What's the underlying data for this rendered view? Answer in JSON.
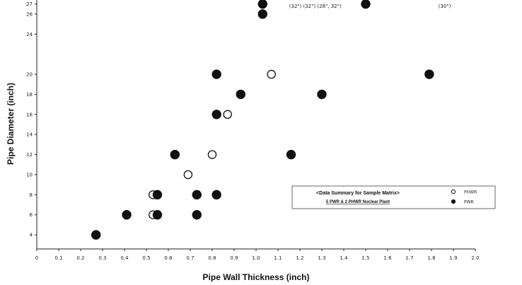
{
  "chart_data": {
    "type": "scatter",
    "title": "",
    "xlabel": "Pipe Wall Thickness (inch)",
    "ylabel": "Pipe Diameter (inch)",
    "xlim": [
      0,
      2.0
    ],
    "ylim": [
      2.6,
      27.4
    ],
    "x_ticks": [
      {
        "value": 0,
        "label": "0"
      },
      {
        "value": 0.1,
        "label": "0.1"
      },
      {
        "value": 0.2,
        "label": "0.2"
      },
      {
        "value": 0.3,
        "label": "0.3"
      },
      {
        "value": 0.4,
        "label": "0.4"
      },
      {
        "value": 0.5,
        "label": "0.5"
      },
      {
        "value": 0.6,
        "label": "0.6"
      },
      {
        "value": 0.7,
        "label": "0.7"
      },
      {
        "value": 0.8,
        "label": "0.8"
      },
      {
        "value": 0.9,
        "label": "0.9"
      },
      {
        "value": 1.0,
        "label": "1.0"
      },
      {
        "value": 1.1,
        "label": "1.1"
      },
      {
        "value": 1.2,
        "label": "1.2"
      },
      {
        "value": 1.3,
        "label": "1.3"
      },
      {
        "value": 1.4,
        "label": "1.4"
      },
      {
        "value": 1.5,
        "label": "1.5"
      },
      {
        "value": 1.6,
        "label": "1.6"
      },
      {
        "value": 1.7,
        "label": "1.7"
      },
      {
        "value": 1.8,
        "label": "1.8"
      },
      {
        "value": 1.9,
        "label": "1.9"
      },
      {
        "value": 2.0,
        "label": "2.0"
      }
    ],
    "y_ticks": [
      {
        "value": 4,
        "label": "4"
      },
      {
        "value": 6,
        "label": "6"
      },
      {
        "value": 8,
        "label": "8"
      },
      {
        "value": 10,
        "label": "10"
      },
      {
        "value": 12,
        "label": "12"
      },
      {
        "value": 14,
        "label": "14"
      },
      {
        "value": 16,
        "label": "16"
      },
      {
        "value": 18,
        "label": "18"
      },
      {
        "value": 20,
        "label": "20"
      },
      {
        "value": 24,
        "label": "24"
      },
      {
        "value": 26,
        "label": "26"
      },
      {
        "value": 27,
        "label": "27"
      }
    ],
    "grid": false,
    "legend_position": "lower-right",
    "legend": {
      "title": "<Data Summary for Sample Matrix>",
      "subtitle": "5 PWR & 2 PHWR Nuclear Plant",
      "entries": [
        {
          "name": "PHWR",
          "marker": "open-circle"
        },
        {
          "name": "PWR",
          "marker": "filled-circle"
        }
      ]
    },
    "top_annotations": [
      {
        "x": 1.27,
        "text": "(32\") (32\") (28\", 32\")"
      },
      {
        "x": 1.86,
        "text": "(30\")"
      }
    ],
    "series": [
      {
        "name": "PHWR",
        "marker": "open-circle",
        "points": [
          {
            "x": 0.53,
            "y": 8
          },
          {
            "x": 0.53,
            "y": 6
          },
          {
            "x": 0.69,
            "y": 10
          },
          {
            "x": 0.8,
            "y": 12
          },
          {
            "x": 0.87,
            "y": 16
          },
          {
            "x": 1.07,
            "y": 20
          }
        ]
      },
      {
        "name": "PWR",
        "marker": "filled-circle",
        "points": [
          {
            "x": 0.27,
            "y": 4
          },
          {
            "x": 0.41,
            "y": 6
          },
          {
            "x": 0.55,
            "y": 6
          },
          {
            "x": 0.55,
            "y": 8
          },
          {
            "x": 0.63,
            "y": 12
          },
          {
            "x": 0.73,
            "y": 8
          },
          {
            "x": 0.73,
            "y": 6
          },
          {
            "x": 0.82,
            "y": 8
          },
          {
            "x": 0.82,
            "y": 16
          },
          {
            "x": 0.82,
            "y": 20
          },
          {
            "x": 0.93,
            "y": 18
          },
          {
            "x": 1.03,
            "y": 27
          },
          {
            "x": 1.03,
            "y": 26
          },
          {
            "x": 1.16,
            "y": 12
          },
          {
            "x": 1.3,
            "y": 18
          },
          {
            "x": 1.5,
            "y": 27
          },
          {
            "x": 1.79,
            "y": 20
          }
        ]
      }
    ]
  }
}
